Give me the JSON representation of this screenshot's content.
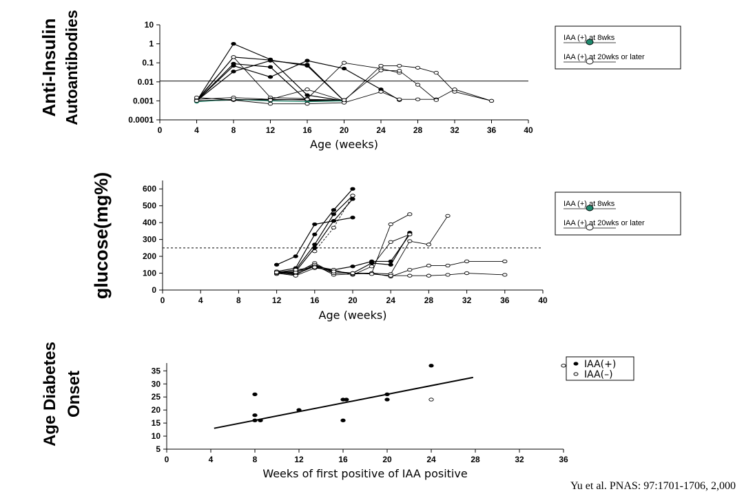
{
  "citation": "Yu et al.  PNAS: 97:1701-1706, 2,000",
  "chart_data": [
    {
      "type": "line",
      "ylabel_lines": [
        "Anti-Insulin",
        "Autoantibodies"
      ],
      "xlabel": "Age (weeks)",
      "x_ticks": [
        0,
        4,
        8,
        12,
        16,
        20,
        24,
        28,
        32,
        36,
        40
      ],
      "y_scale": "log",
      "y_ticks": [
        {
          "v": 0.0001,
          "label": "0.0001"
        },
        {
          "v": 0.001,
          "label": "0.001"
        },
        {
          "v": 0.01,
          "label": "0.01"
        },
        {
          "v": 0.1,
          "label": "0.1"
        },
        {
          "v": 1,
          "label": "1"
        },
        {
          "v": 10,
          "label": "10"
        }
      ],
      "xlim": [
        0,
        40
      ],
      "ylim": [
        0.0001,
        10
      ],
      "threshold": 0.011,
      "legend": {
        "position": "right",
        "items": [
          {
            "label": "IAA (+) at 8wks",
            "marker": "filled",
            "color": "#1f8a6e"
          },
          {
            "label": "IAA (+) at 20wks or later",
            "marker": "open"
          }
        ]
      },
      "series": [
        {
          "marker": "filled",
          "points": [
            [
              4,
              0.001
            ],
            [
              8,
              1
            ],
            [
              12,
              0.15
            ],
            [
              16,
              0.002
            ],
            [
              20,
              0.001
            ]
          ]
        },
        {
          "marker": "filled",
          "points": [
            [
              4,
              0.001
            ],
            [
              8,
              0.2
            ],
            [
              12,
              0.14
            ],
            [
              16,
              0.07
            ],
            [
              20,
              0.001
            ]
          ]
        },
        {
          "marker": "filled",
          "points": [
            [
              4,
              0.001
            ],
            [
              8,
              0.09
            ],
            [
              12,
              0.06
            ],
            [
              16,
              0.001
            ],
            [
              20,
              0.001
            ]
          ]
        },
        {
          "marker": "filled",
          "points": [
            [
              4,
              0.001
            ],
            [
              8,
              0.07
            ],
            [
              12,
              0.018
            ],
            [
              16,
              0.13
            ],
            [
              20,
              0.05
            ],
            [
              24,
              0.004
            ],
            [
              26,
              0.0011
            ]
          ]
        },
        {
          "marker": "filled",
          "points": [
            [
              4,
              0.001
            ],
            [
              8,
              0.035
            ],
            [
              12,
              0.13
            ],
            [
              16,
              0.08
            ],
            [
              20,
              0.001
            ]
          ]
        },
        {
          "marker": "filled",
          "points": [
            [
              4,
              0.001
            ],
            [
              8,
              0.0011
            ],
            [
              12,
              0.0012
            ],
            [
              16,
              0.0011
            ],
            [
              20,
              0.0011
            ]
          ]
        },
        {
          "marker": "filled",
          "points": [
            [
              4,
              0.0009
            ],
            [
              8,
              0.0012
            ],
            [
              12,
              0.001
            ],
            [
              16,
              0.0009
            ],
            [
              20,
              0.001
            ]
          ],
          "color": "#1f8a6e"
        },
        {
          "marker": "open",
          "points": [
            [
              4,
              0.0011
            ],
            [
              8,
              0.2
            ],
            [
              12,
              0.0015
            ],
            [
              16,
              0.0013
            ],
            [
              20,
              0.1
            ],
            [
              24,
              0.05
            ],
            [
              26,
              0.03
            ]
          ]
        },
        {
          "marker": "open",
          "points": [
            [
              4,
              0.0012
            ],
            [
              8,
              0.0015
            ],
            [
              12,
              0.0012
            ],
            [
              16,
              0.004
            ],
            [
              20,
              0.001
            ],
            [
              24,
              0.07
            ],
            [
              26,
              0.07
            ],
            [
              28,
              0.055
            ],
            [
              30,
              0.03
            ],
            [
              32,
              0.003
            ],
            [
              36,
              0.001
            ]
          ]
        },
        {
          "marker": "open",
          "points": [
            [
              4,
              0.0015
            ],
            [
              8,
              0.0011
            ],
            [
              12,
              0.0007
            ],
            [
              16,
              0.0007
            ],
            [
              20,
              0.0008
            ],
            [
              24,
              0.003
            ],
            [
              26,
              0.0012
            ],
            [
              28,
              0.0012
            ],
            [
              30,
              0.0012
            ],
            [
              32,
              0.004
            ],
            [
              36,
              0.001
            ]
          ]
        },
        {
          "marker": "open",
          "points": [
            [
              4,
              0.001
            ],
            [
              8,
              0.0012
            ],
            [
              12,
              0.0011
            ],
            [
              16,
              0.0012
            ],
            [
              20,
              0.0011
            ],
            [
              24,
              0.04
            ],
            [
              26,
              0.038
            ],
            [
              28,
              0.007
            ],
            [
              30,
              0.0011
            ]
          ]
        }
      ]
    },
    {
      "type": "line",
      "ylabel_lines": [
        "glucose(mg%)"
      ],
      "xlabel": "Age (weeks)",
      "x_ticks": [
        0,
        4,
        8,
        12,
        16,
        20,
        24,
        28,
        32,
        36,
        40
      ],
      "y_ticks": [
        0,
        100,
        200,
        300,
        400,
        500,
        600
      ],
      "xlim": [
        0,
        40
      ],
      "ylim": [
        0,
        650
      ],
      "threshold": 250,
      "legend": {
        "position": "right",
        "items": [
          {
            "label": "IAA (+) at 8wks",
            "marker": "filled",
            "color": "#1f8a6e"
          },
          {
            "label": "IAA (+) at 20wks or later",
            "marker": "open"
          }
        ]
      },
      "series": [
        {
          "marker": "filled",
          "points": [
            [
              12,
              150
            ],
            [
              14,
              200
            ],
            [
              16,
              390
            ],
            [
              18,
              410
            ],
            [
              20,
              430
            ]
          ]
        },
        {
          "marker": "filled",
          "points": [
            [
              12,
              110
            ],
            [
              14,
              130
            ],
            [
              16,
              330
            ],
            [
              18,
              475
            ],
            [
              20,
              600
            ]
          ]
        },
        {
          "marker": "filled",
          "points": [
            [
              12,
              100
            ],
            [
              14,
              120
            ],
            [
              16,
              270
            ],
            [
              18,
              450
            ],
            [
              20,
              560
            ]
          ]
        },
        {
          "marker": "filled",
          "points": [
            [
              12,
              100
            ],
            [
              14,
              110
            ],
            [
              16,
              250
            ],
            [
              18,
              410
            ],
            [
              20,
              540
            ]
          ]
        },
        {
          "marker": "filled",
          "points": [
            [
              12,
              110
            ],
            [
              14,
              95
            ],
            [
              16,
              140
            ],
            [
              18,
              120
            ],
            [
              20,
              140
            ],
            [
              22,
              170
            ],
            [
              24,
              170
            ],
            [
              26,
              330
            ]
          ]
        },
        {
          "marker": "filled",
          "points": [
            [
              12,
              105
            ],
            [
              14,
              90
            ],
            [
              16,
              150
            ],
            [
              18,
              110
            ],
            [
              20,
              100
            ],
            [
              22,
              160
            ],
            [
              24,
              150
            ],
            [
              26,
              340
            ]
          ]
        },
        {
          "marker": "open",
          "points": [
            [
              12,
              110
            ],
            [
              14,
              100
            ],
            [
              16,
              160
            ],
            [
              18,
              100
            ],
            [
              20,
              100
            ],
            [
              22,
              100
            ],
            [
              24,
              390
            ],
            [
              26,
              450
            ]
          ]
        },
        {
          "marker": "open",
          "points": [
            [
              12,
              100
            ],
            [
              14,
              85
            ],
            [
              16,
              130
            ],
            [
              18,
              120
            ],
            [
              20,
              90
            ],
            [
              22,
              140
            ],
            [
              24,
              285
            ],
            [
              26,
              330
            ]
          ]
        },
        {
          "marker": "open",
          "points": [
            [
              12,
              95
            ],
            [
              14,
              110
            ],
            [
              16,
              150
            ],
            [
              18,
              90
            ],
            [
              20,
              95
            ],
            [
              22,
              100
            ],
            [
              24,
              95
            ],
            [
              26,
              290
            ],
            [
              28,
              270
            ],
            [
              30,
              440
            ]
          ]
        },
        {
          "marker": "open",
          "points": [
            [
              12,
              100
            ],
            [
              14,
              105
            ],
            [
              16,
              140
            ],
            [
              18,
              100
            ],
            [
              20,
              100
            ],
            [
              22,
              100
            ],
            [
              24,
              80
            ],
            [
              26,
              120
            ],
            [
              28,
              145
            ],
            [
              30,
              145
            ],
            [
              32,
              170
            ],
            [
              36,
              170
            ]
          ]
        },
        {
          "marker": "open",
          "points": [
            [
              12,
              105
            ],
            [
              14,
              120
            ],
            [
              16,
              135
            ],
            [
              18,
              110
            ],
            [
              20,
              100
            ],
            [
              22,
              95
            ],
            [
              24,
              85
            ],
            [
              26,
              85
            ],
            [
              28,
              85
            ],
            [
              30,
              90
            ],
            [
              32,
              100
            ],
            [
              36,
              90
            ]
          ]
        },
        {
          "marker": "open",
          "dashed": true,
          "points": [
            [
              16,
              230
            ],
            [
              18,
              370
            ],
            [
              20,
              560
            ]
          ]
        }
      ]
    },
    {
      "type": "scatter",
      "ylabel_lines": [
        "Age Diabetes",
        "Onset"
      ],
      "xlabel": "Weeks of first positive of IAA positive",
      "x_ticks": [
        0,
        4,
        8,
        12,
        16,
        20,
        24,
        28,
        32,
        36
      ],
      "y_ticks": [
        5,
        10,
        15,
        20,
        25,
        30,
        35
      ],
      "xlim": [
        0,
        36
      ],
      "ylim": [
        5,
        38
      ],
      "legend": {
        "position": "right",
        "items": [
          {
            "label": "IAA(+)",
            "marker": "filled"
          },
          {
            "label": "IAA(–)",
            "marker": "open"
          }
        ]
      },
      "series": [
        {
          "name": "IAA(+)",
          "marker": "filled",
          "points": [
            [
              8,
              16
            ],
            [
              8,
              18
            ],
            [
              8,
              26
            ],
            [
              8.5,
              16
            ],
            [
              12,
              20
            ],
            [
              16,
              16
            ],
            [
              16,
              24
            ],
            [
              16.3,
              24
            ],
            [
              20,
              24
            ],
            [
              20,
              26
            ],
            [
              24,
              37
            ]
          ]
        },
        {
          "name": "IAA(–)",
          "marker": "open",
          "points": [
            [
              24,
              24
            ],
            [
              36,
              37
            ]
          ]
        }
      ],
      "trendline": [
        [
          4.3,
          13
        ],
        [
          27.8,
          32.5
        ]
      ]
    }
  ]
}
